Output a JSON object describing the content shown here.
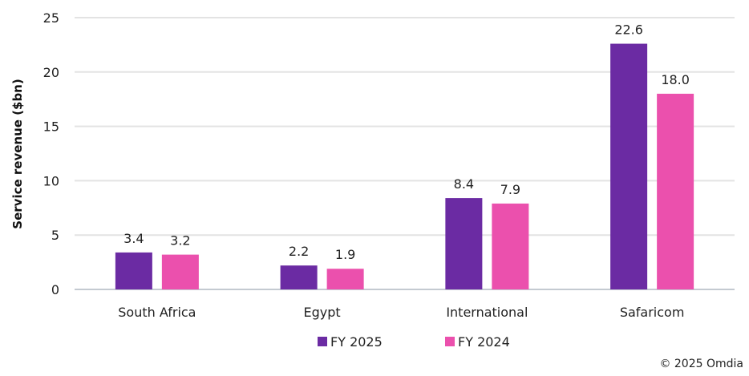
{
  "chart_data": {
    "type": "bar",
    "title": "",
    "xlabel": "",
    "ylabel": "Service revenue ($bn)",
    "ylim": [
      0,
      25
    ],
    "yticks": [
      0,
      5,
      10,
      15,
      20,
      25
    ],
    "grid": true,
    "categories": [
      "South Africa",
      "Egypt",
      "International",
      "Safaricom"
    ],
    "series": [
      {
        "name": "FY 2025",
        "color": "#6B2BA3",
        "values": [
          3.4,
          2.2,
          8.4,
          22.6
        ],
        "labels": [
          "3.4",
          "2.2",
          "8.4",
          "22.6"
        ]
      },
      {
        "name": "FY 2024",
        "color": "#EB50AD",
        "values": [
          3.2,
          1.9,
          7.9,
          18.0
        ],
        "labels": [
          "3.2",
          "1.9",
          "7.9",
          "18.0"
        ]
      }
    ],
    "legend_position": "bottom"
  },
  "footer": {
    "copyright": "© 2025 Omdia"
  }
}
